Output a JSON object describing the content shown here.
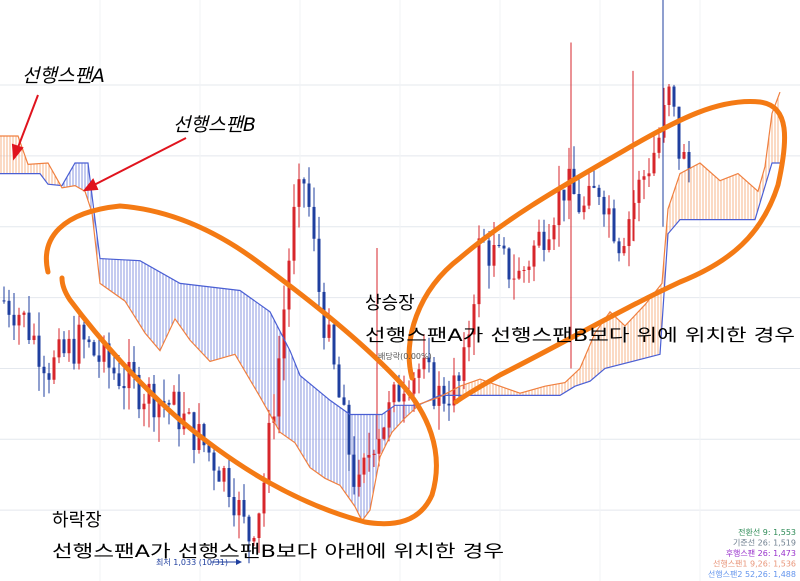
{
  "chart_data": {
    "type": "candlestick",
    "title": "",
    "annotations": {
      "span_a_label": "선행스팬A",
      "span_b_label": "선행스팬B",
      "uptrend_title": "상승장",
      "uptrend_desc": "선행스팬A가 선행스팬B보다 위에 위치한 경우",
      "downtrend_title": "하락장",
      "downtrend_desc": "선행스팬A가 선행스팬B보다 아래에 위치한 경우",
      "min_marker": "최저 1,033 (10/31)",
      "dividend_marker": "배당락(0.00%)"
    },
    "legend": [
      {
        "label": "전환선 9: 1,553",
        "color": "#2e8b57"
      },
      {
        "label": "기준선 26: 1,519",
        "color": "#708090"
      },
      {
        "label": "후행스팬 26: 1,473",
        "color": "#9932cc"
      },
      {
        "label": "선행스팬1 9,26: 1,536",
        "color": "#e9967a"
      },
      {
        "label": "선행스팬2 52,26: 1,488",
        "color": "#6495ed"
      }
    ],
    "colors": {
      "up": "#d7262b",
      "down": "#1f3f9f",
      "span_a": "#f08040",
      "span_b": "#4a5fd4",
      "bull_fill": "#f7b48a",
      "bear_fill": "#8a97e0",
      "circle": "#f47a14",
      "arrow": "#e0141e",
      "grid": "#e4e8ee"
    },
    "price_range": [
      1000,
      1820
    ],
    "price_grid": [
      1100,
      1200,
      1300,
      1400,
      1500,
      1600,
      1700
    ],
    "span_a": [
      [
        0,
        1628
      ],
      [
        18,
        1628
      ],
      [
        28,
        1588
      ],
      [
        48,
        1590
      ],
      [
        62,
        1555
      ],
      [
        75,
        1558
      ],
      [
        85,
        1550
      ],
      [
        92,
        1520
      ],
      [
        100,
        1420
      ],
      [
        125,
        1395
      ],
      [
        145,
        1350
      ],
      [
        160,
        1325
      ],
      [
        175,
        1370
      ],
      [
        190,
        1340
      ],
      [
        210,
        1310
      ],
      [
        235,
        1320
      ],
      [
        260,
        1260
      ],
      [
        280,
        1210
      ],
      [
        295,
        1195
      ],
      [
        310,
        1160
      ],
      [
        325,
        1145
      ],
      [
        340,
        1135
      ],
      [
        355,
        1105
      ],
      [
        362,
        1085
      ],
      [
        370,
        1100
      ],
      [
        380,
        1175
      ],
      [
        392,
        1210
      ],
      [
        405,
        1230
      ],
      [
        420,
        1250
      ],
      [
        440,
        1260
      ],
      [
        460,
        1275
      ],
      [
        480,
        1285
      ],
      [
        500,
        1275
      ],
      [
        520,
        1265
      ],
      [
        545,
        1275
      ],
      [
        565,
        1280
      ],
      [
        580,
        1300
      ],
      [
        595,
        1350
      ],
      [
        610,
        1380
      ],
      [
        625,
        1360
      ],
      [
        645,
        1390
      ],
      [
        662,
        1420
      ],
      [
        668,
        1525
      ],
      [
        680,
        1575
      ],
      [
        700,
        1590
      ],
      [
        720,
        1565
      ],
      [
        738,
        1575
      ],
      [
        758,
        1550
      ],
      [
        765,
        1585
      ],
      [
        772,
        1660
      ],
      [
        780,
        1690
      ]
    ],
    "span_b": [
      [
        0,
        1575
      ],
      [
        40,
        1575
      ],
      [
        48,
        1560
      ],
      [
        62,
        1558
      ],
      [
        75,
        1590
      ],
      [
        88,
        1590
      ],
      [
        95,
        1510
      ],
      [
        100,
        1455
      ],
      [
        140,
        1452
      ],
      [
        180,
        1420
      ],
      [
        240,
        1410
      ],
      [
        270,
        1380
      ],
      [
        290,
        1325
      ],
      [
        300,
        1290
      ],
      [
        330,
        1255
      ],
      [
        350,
        1235
      ],
      [
        382,
        1235
      ],
      [
        395,
        1248
      ],
      [
        418,
        1248
      ],
      [
        440,
        1262
      ],
      [
        480,
        1262
      ],
      [
        560,
        1262
      ],
      [
        575,
        1275
      ],
      [
        590,
        1282
      ],
      [
        605,
        1300
      ],
      [
        660,
        1320
      ],
      [
        668,
        1490
      ],
      [
        680,
        1510
      ],
      [
        755,
        1510
      ],
      [
        772,
        1590
      ],
      [
        780,
        1590
      ]
    ]
  }
}
